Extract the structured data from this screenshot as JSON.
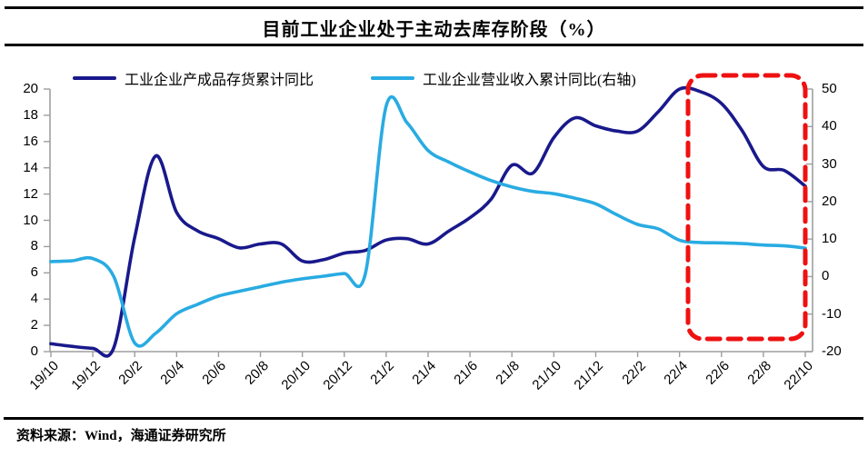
{
  "title": "目前工业企业处于主动去库存阶段（%）",
  "source": {
    "label": "资料来源：Wind，海通证券研究所"
  },
  "colors": {
    "series_inventory": "#19198C",
    "series_revenue": "#29ABE2",
    "highlight_box": "#EE1111",
    "axis": "#9E9E9E",
    "text": "#000000"
  },
  "chart_data": {
    "type": "line",
    "title": "目前工业企业处于主动去库存阶段（%）",
    "x": [
      "19/10",
      "19/11",
      "19/12",
      "20/1",
      "20/2",
      "20/3",
      "20/4",
      "20/5",
      "20/6",
      "20/7",
      "20/8",
      "20/9",
      "20/10",
      "20/11",
      "20/12",
      "21/1",
      "21/2",
      "21/3",
      "21/4",
      "21/5",
      "21/6",
      "21/7",
      "21/8",
      "21/9",
      "21/10",
      "21/11",
      "21/12",
      "22/1",
      "22/2",
      "22/3",
      "22/4",
      "22/5",
      "22/6",
      "22/7",
      "22/8",
      "22/9",
      "22/10"
    ],
    "x_tick_labels": [
      "19/10",
      "19/12",
      "20/2",
      "20/4",
      "20/6",
      "20/8",
      "20/10",
      "20/12",
      "21/2",
      "21/4",
      "21/6",
      "21/8",
      "21/10",
      "21/12",
      "22/2",
      "22/4",
      "22/6",
      "22/8",
      "22/10"
    ],
    "series": [
      {
        "name": "工业企业产成品存货累计同比",
        "axis": "left",
        "color": "#19198C",
        "values": [
          0.6,
          0.4,
          0.25,
          0.3,
          8.7,
          14.9,
          10.6,
          9.2,
          8.6,
          7.9,
          8.2,
          8.2,
          6.9,
          7.0,
          7.5,
          7.7,
          8.5,
          8.6,
          8.2,
          9.2,
          10.2,
          11.6,
          14.2,
          13.6,
          16.3,
          17.8,
          17.2,
          16.8,
          16.8,
          18.3,
          20.0,
          19.8,
          18.9,
          16.8,
          14.1,
          13.8,
          12.6
        ]
      },
      {
        "name": "工业企业营业收入累计同比(右轴)",
        "axis": "right",
        "color": "#29ABE2",
        "values": [
          4.0,
          4.2,
          4.8,
          0.0,
          -17.7,
          -15.1,
          -9.9,
          -7.4,
          -5.2,
          -3.9,
          -2.7,
          -1.5,
          -0.6,
          0.1,
          0.8,
          0.6,
          45.5,
          41.0,
          33.6,
          30.5,
          27.9,
          25.6,
          23.9,
          22.7,
          22.1,
          20.9,
          19.4,
          16.5,
          13.9,
          12.7,
          9.7,
          9.1,
          9.0,
          8.8,
          8.4,
          8.2,
          7.6
        ]
      }
    ],
    "left_axis": {
      "min": 0,
      "max": 20,
      "ticks": [
        0,
        2,
        4,
        6,
        8,
        10,
        12,
        14,
        16,
        18,
        20
      ]
    },
    "right_axis": {
      "min": -20,
      "max": 50,
      "ticks": [
        -20,
        -10,
        0,
        10,
        20,
        30,
        40,
        50
      ]
    },
    "grid": false,
    "legend_position": "top",
    "annotation_box": {
      "style": "dashed",
      "color": "#EE1111",
      "x_from": "22/4",
      "x_to": "22/10"
    }
  }
}
